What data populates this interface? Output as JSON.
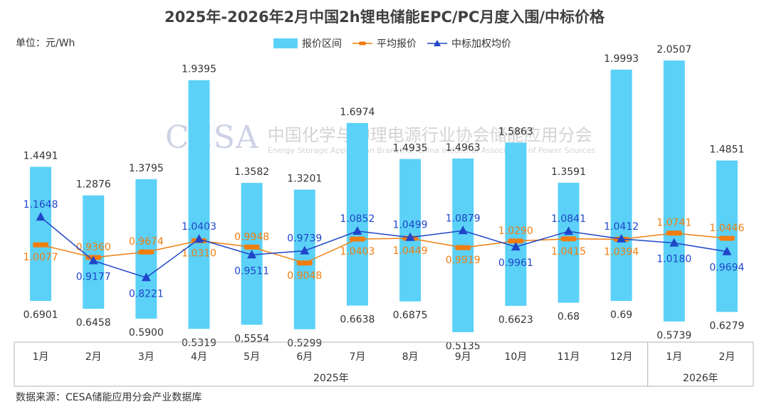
{
  "title": "2025年-2026年2月中国2h锂电储能EPC/PC月度入围/中标价格",
  "unit_label": "单位：元/Wh",
  "source": "数据来源：CESA储能应用分会产业数据库",
  "watermark": {
    "logo": "CESA",
    "cn": "中国化学与物理电源行业协会储能应用分会",
    "en": "Energy Storage Application Branch of China Industrial Association of Power Sources"
  },
  "legend": {
    "range": "报价区间",
    "avg": "平均报价",
    "weighted": "中标加权均价"
  },
  "colors": {
    "bar": "#5bd1f7",
    "avg": "#f07d0f",
    "weighted": "#1f45c8"
  },
  "chart_data": {
    "type": "bar",
    "categories": [
      "1月",
      "2月",
      "3月",
      "4月",
      "5月",
      "6月",
      "7月",
      "8月",
      "9月",
      "10月",
      "11月",
      "12月",
      "1月",
      "2月"
    ],
    "groups": [
      {
        "label": "2025年",
        "count": 12
      },
      {
        "label": "2026年",
        "count": 2
      }
    ],
    "ylim": [
      0.3,
      2.2
    ],
    "series": [
      {
        "name": "报价区间",
        "type": "range",
        "high": [
          1.4491,
          1.2876,
          1.3795,
          1.9395,
          1.3582,
          1.3201,
          1.6974,
          1.4935,
          1.4963,
          1.5863,
          1.3591,
          1.9993,
          2.0507,
          1.4851
        ],
        "high_labels": [
          "1.4491",
          "1.2876",
          "1.3795",
          "1.9395",
          "1.3582",
          "1.3201",
          "1.6974",
          "1.4935",
          "1.4963",
          "1.5863",
          "1.3591",
          "1.9993",
          "2.0507",
          "1.4851"
        ],
        "low": [
          0.6901,
          0.6458,
          0.59,
          0.5319,
          0.5554,
          0.5299,
          0.6638,
          0.6875,
          0.5135,
          0.6623,
          0.68,
          0.69,
          0.5739,
          0.6279
        ],
        "low_labels": [
          "0.6901",
          "0.6458",
          "0.5900",
          "0.5319",
          "0.5554",
          "0.5299",
          "0.6638",
          "0.6875",
          "0.5135",
          "0.6623",
          "0.68",
          "0.69",
          "0.5739",
          "0.6279"
        ]
      },
      {
        "name": "平均报价",
        "type": "line",
        "values": [
          1.0077,
          0.936,
          0.9674,
          1.031,
          0.9948,
          0.9048,
          1.0403,
          1.0449,
          0.9919,
          1.029,
          1.0415,
          1.0394,
          1.0741,
          1.0446
        ],
        "labels": [
          "1.0077",
          "0.9360",
          "0.9674",
          "1.0310",
          "0.9948",
          "0.9048",
          "1.0403",
          "1.0449",
          "0.9919",
          "1.0290",
          "1.0415",
          "1.0394",
          "1.0741",
          "1.0446"
        ]
      },
      {
        "name": "中标加权均价",
        "type": "line",
        "values": [
          1.1648,
          0.9177,
          0.8221,
          1.0403,
          0.9511,
          0.9739,
          1.0852,
          1.0499,
          1.0879,
          0.9961,
          1.0841,
          1.0412,
          1.018,
          0.9694
        ],
        "labels": [
          "1.1648",
          "0.9177",
          "0.8221",
          "1.0403",
          "0.9511",
          "0.9739",
          "1.0852",
          "1.0499",
          "1.0879",
          "0.9961",
          "1.0841",
          "1.0412",
          "1.0180",
          "0.9694"
        ]
      }
    ],
    "avg_label_pos": [
      "below",
      "above",
      "above",
      "below",
      "above",
      "below",
      "below",
      "below",
      "below",
      "above",
      "below",
      "below",
      "above",
      "above"
    ],
    "weighted_label_pos": [
      "above",
      "below",
      "below",
      "above",
      "below",
      "above",
      "above",
      "above",
      "above",
      "below",
      "above",
      "above",
      "below",
      "below"
    ],
    "grid": false,
    "legend_position": "top-center"
  }
}
